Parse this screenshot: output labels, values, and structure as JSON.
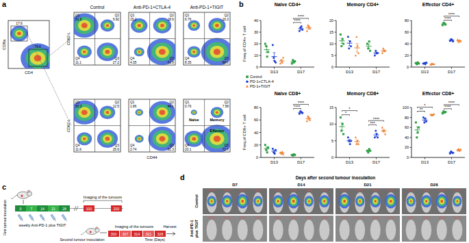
{
  "panel_labels": [
    "a",
    "b",
    "c",
    "d"
  ],
  "flow": {
    "gate_plot": {
      "x_label": "CD4",
      "y_label": "CD8a",
      "gates": [
        17.6,
        79.6
      ]
    },
    "columns": [
      "Control",
      "Anti-PD-1+CTLA-4",
      "Anti-PD-1+TIGIT"
    ],
    "x_label": "CD44",
    "y_label": "CD62-L",
    "quadrants": [
      "Q1",
      "Q2",
      "Q3",
      "Q4"
    ],
    "region_labels": [
      "Naïve",
      "Memory",
      "Effector"
    ],
    "rows": [
      [
        [
          51.8,
          9.92,
          27.2,
          11.1
        ],
        [
          15.2,
          18.6,
          61.9,
          4.35
        ],
        [
          6.76,
          16.3,
          68.6,
          8.35
        ]
      ],
      [
        [
          50.3,
          12.5,
          25.6,
          11.6
        ],
        [
          1.86,
          44.1,
          51.3,
          2.74
        ],
        [
          0.76,
          7.58,
          71.6,
          20.1
        ]
      ]
    ]
  },
  "chart_data": [
    {
      "type": "dot",
      "title": "Naïve CD4+",
      "y_label": "Freq.of CD4+ T cell",
      "categories": [
        "D13",
        "D17"
      ],
      "ylim": [
        0,
        40
      ],
      "yticks": [
        0,
        10,
        20,
        30,
        40
      ],
      "series": [
        {
          "name": "Control",
          "color": "#2f9e44",
          "marker": "square",
          "values": [
            15,
            4.5
          ],
          "error": [
            2.5,
            0.6
          ],
          "points": [
            [
              20,
              18,
              9,
              13
            ],
            [
              3,
              6,
              4,
              5
            ]
          ]
        },
        {
          "name": "PD-1+CTLA-4",
          "color": "#1f3fd1",
          "marker": "circle",
          "values": [
            9,
            33
          ],
          "error": [
            3.4,
            0.9
          ],
          "points": [
            [
              19,
              8,
              5,
              4
            ],
            [
              31,
              34,
              35,
              32
            ]
          ]
        },
        {
          "name": "PD-1+TIGIT",
          "color": "#f07d2a",
          "marker": "triangle",
          "values": [
            5.25,
            33.75
          ],
          "error": [
            1.1,
            1.1
          ],
          "points": [
            [
              3,
              6,
              4,
              8
            ],
            [
              31,
              36,
              35,
              33
            ]
          ]
        }
      ],
      "annotations": [
        {
          "category": 1,
          "from": 0,
          "to": 1,
          "label": "****"
        },
        {
          "category": 1,
          "from": 0,
          "to": 2,
          "label": "****"
        }
      ]
    },
    {
      "type": "dot",
      "title": "Memory CD4+",
      "categories": [
        "D13",
        "D17"
      ],
      "ylim": [
        0,
        20
      ],
      "yticks": [
        0,
        5,
        10,
        15,
        20
      ],
      "series": [
        {
          "name": "Control",
          "color": "#2f9e44",
          "marker": "square",
          "values": [
            11.25,
            9
          ],
          "error": [
            1.1,
            0.9
          ],
          "points": [
            [
              14,
              9,
              12,
              10
            ],
            [
              10,
              8,
              11,
              7
            ]
          ]
        },
        {
          "name": "PD-1+CTLA-4",
          "color": "#1f3fd1",
          "marker": "circle",
          "values": [
            10.25,
            6
          ],
          "error": [
            1.1,
            0.4
          ],
          "points": [
            [
              13,
              8,
              11,
              9
            ],
            [
              5,
              7,
              6,
              6
            ]
          ]
        },
        {
          "name": "PD-1+TIGIT",
          "color": "#f07d2a",
          "marker": "triangle",
          "values": [
            8.25,
            7
          ],
          "error": [
            1.8,
            0.4
          ],
          "points": [
            [
              5,
              13,
              9,
              6
            ],
            [
              6,
              8,
              7,
              7
            ]
          ]
        }
      ]
    },
    {
      "type": "dot",
      "title": "Effector CD4+",
      "categories": [
        "D13",
        "D17"
      ],
      "ylim": [
        0,
        80
      ],
      "yticks": [
        0,
        20,
        40,
        60,
        80
      ],
      "series": [
        {
          "name": "Control",
          "color": "#2f9e44",
          "marker": "square",
          "values": [
            6.5,
            74
          ],
          "error": [
            0.6,
            0.9
          ],
          "points": [
            [
              7,
              5,
              8,
              6
            ],
            [
              72,
              76,
              75,
              73
            ]
          ]
        },
        {
          "name": "PD-1+CTLA-4",
          "color": "#1f3fd1",
          "marker": "circle",
          "values": [
            6.5,
            46
          ],
          "error": [
            0.6,
            0.9
          ],
          "points": [
            [
              6,
              7,
              5,
              8
            ],
            [
              45,
              48,
              47,
              44
            ]
          ]
        },
        {
          "name": "PD-1+TIGIT",
          "color": "#f07d2a",
          "marker": "triangle",
          "values": [
            5,
            45
          ],
          "error": [
            0.4,
            0.9
          ],
          "points": [
            [
              4,
              6,
              5,
              5
            ],
            [
              47,
              43,
              46,
              44
            ]
          ]
        }
      ],
      "annotations": [
        {
          "category": 1,
          "from": 0,
          "to": 1,
          "label": "****"
        },
        {
          "category": 1,
          "from": 0,
          "to": 2,
          "label": "****"
        }
      ]
    },
    {
      "type": "dot",
      "title": "Naïve CD8+",
      "y_label": "Freq.of CD8+ T cell",
      "categories": [
        "D13",
        "D17"
      ],
      "ylim": [
        0,
        80
      ],
      "yticks": [
        0,
        20,
        40,
        60,
        80
      ],
      "legend": "top-left",
      "series": [
        {
          "name": "Control",
          "color": "#2f9e44",
          "marker": "square",
          "values": [
            14,
            4
          ],
          "error": [
            2.6,
            0.4
          ],
          "points": [
            [
              20,
              12,
              8,
              16
            ],
            [
              4,
              3,
              5,
              4
            ]
          ]
        },
        {
          "name": "PD-1+CTLA-4",
          "color": "#1f3fd1",
          "marker": "circle",
          "values": [
            10,
            72
          ],
          "error": [
            1.8,
            0.9
          ],
          "points": [
            [
              14,
              8,
              6,
              12
            ],
            [
              70,
              74,
              73,
              71
            ]
          ]
        },
        {
          "name": "PD-1+TIGIT",
          "color": "#f07d2a",
          "marker": "triangle",
          "values": [
            7,
            62
          ],
          "error": [
            0.9,
            1.8
          ],
          "points": [
            [
              8,
              6,
              9,
              5
            ],
            [
              58,
              66,
              64,
              60
            ]
          ]
        }
      ],
      "annotations": [
        {
          "category": 1,
          "from": 0,
          "to": 1,
          "label": "****"
        },
        {
          "category": 1,
          "from": 0,
          "to": 2,
          "label": "****"
        }
      ]
    },
    {
      "type": "dot",
      "title": "Memory CD8+",
      "categories": [
        "D13",
        "D17"
      ],
      "ylim": [
        0,
        15
      ],
      "yticks": [
        0,
        5,
        10,
        15
      ],
      "series": [
        {
          "name": "Control",
          "color": "#2f9e44",
          "marker": "square",
          "values": [
            9.25,
            2
          ],
          "error": [
            1.1,
            0.2
          ],
          "points": [
            [
              12,
              8,
              10,
              7
            ],
            [
              2,
              1.5,
              2.5,
              2
            ]
          ]
        },
        {
          "name": "PD-1+CTLA-4",
          "color": "#1f3fd1",
          "marker": "circle",
          "values": [
            5,
            6.75
          ],
          "error": [
            0.4,
            0.5
          ],
          "points": [
            [
              6,
              5,
              4,
              5
            ],
            [
              6,
              8,
              7,
              6
            ]
          ]
        },
        {
          "name": "PD-1+TIGIT",
          "color": "#f07d2a",
          "marker": "triangle",
          "values": [
            4.75,
            8
          ],
          "error": [
            0.5,
            0.4
          ],
          "points": [
            [
              6,
              4,
              5,
              4
            ],
            [
              9,
              8,
              8,
              7
            ]
          ]
        }
      ],
      "annotations": [
        {
          "category": 0,
          "from": 0,
          "to": 1,
          "label": "*"
        },
        {
          "category": 0,
          "from": 0,
          "to": 2,
          "label": "*"
        },
        {
          "category": 1,
          "from": 0,
          "to": 1,
          "label": "***"
        },
        {
          "category": 1,
          "from": 0,
          "to": 2,
          "label": "****"
        }
      ]
    },
    {
      "type": "dot",
      "title": "Effector CD8+",
      "categories": [
        "D13",
        "D17"
      ],
      "ylim": [
        0,
        100
      ],
      "yticks": [
        0,
        20,
        40,
        60,
        80,
        100
      ],
      "series": [
        {
          "name": "Control",
          "color": "#2f9e44",
          "marker": "square",
          "values": [
            55,
            90.25
          ],
          "error": [
            6.5,
            0.9
          ],
          "points": [
            [
              70,
              40,
              50,
              60
            ],
            [
              88,
              92,
              90,
              91
            ]
          ]
        },
        {
          "name": "PD-1+CTLA-4",
          "color": "#1f3fd1",
          "marker": "circle",
          "values": [
            75,
            9.75
          ],
          "error": [
            2.4,
            0.9
          ],
          "points": [
            [
              80,
              70,
              78,
              72
            ],
            [
              8,
              12,
              10,
              9
            ]
          ]
        },
        {
          "name": "PD-1+TIGIT",
          "color": "#f07d2a",
          "marker": "triangle",
          "values": [
            85.5,
            15
          ],
          "error": [
            0.6,
            0.9
          ],
          "points": [
            [
              86,
              84,
              85,
              87
            ],
            [
              14,
              17,
              13,
              16
            ]
          ]
        }
      ],
      "annotations": [
        {
          "category": 0,
          "from": 0,
          "to": 1,
          "label": "**"
        },
        {
          "category": 0,
          "from": 0,
          "to": 2,
          "label": "*"
        },
        {
          "category": 1,
          "from": 0,
          "to": 1,
          "label": "****"
        },
        {
          "category": 1,
          "from": 0,
          "to": 2,
          "label": "****"
        }
      ]
    }
  ],
  "timeline": {
    "first_label": "First tumour inoculation",
    "imaging_label": "Imaging of the tumours",
    "first_days": [
      0,
      7,
      14,
      21,
      28
    ],
    "imaging_days": [
      100,
      200
    ],
    "treatment_label": "weekly Anti-PD-1 plus TIGIT",
    "second_label": "Second tumour inoculation",
    "second_days": [
      300,
      307,
      314,
      321,
      328
    ],
    "harvest_label": "Harvest",
    "axis_label": "Time (Days)"
  },
  "imaging": {
    "title": "Days after second tumour inoculation",
    "days": [
      "D7",
      "D14",
      "D21",
      "D28"
    ],
    "rows": [
      [
        "Control"
      ],
      [
        "Anti-PD-1",
        "plus TIGIT"
      ]
    ]
  }
}
